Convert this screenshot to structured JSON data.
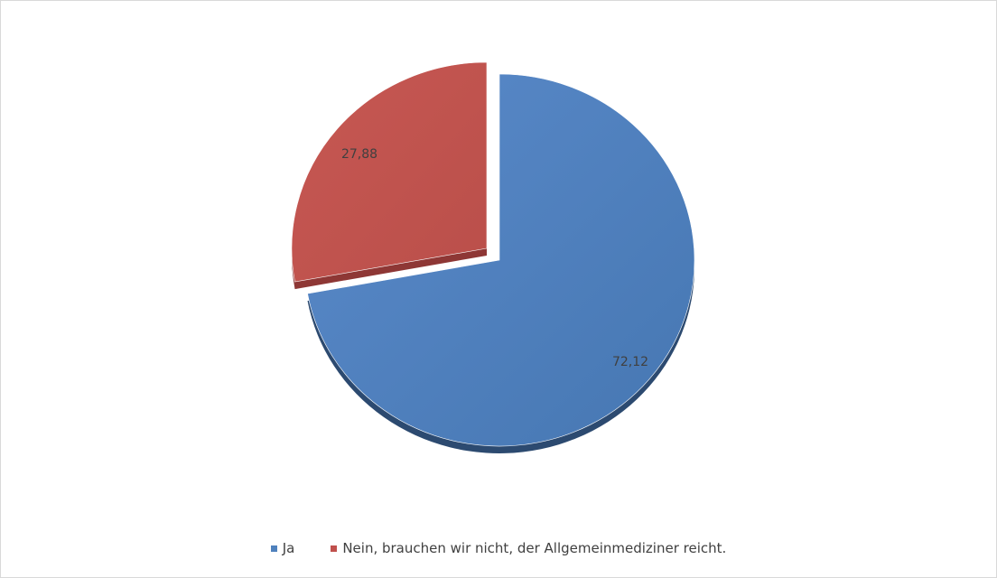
{
  "chart_data": {
    "type": "pie",
    "title": "",
    "categories": [
      "Ja",
      "Nein, brauchen wir nicht, der Allgemeinmediziner reicht."
    ],
    "values": [
      72.12,
      27.88
    ],
    "data_labels": [
      "72,12",
      "27,88"
    ],
    "colors": [
      "#4F81BD",
      "#C0504D"
    ],
    "exploded": [
      false,
      true
    ],
    "legend_position": "bottom",
    "style": "3d"
  }
}
